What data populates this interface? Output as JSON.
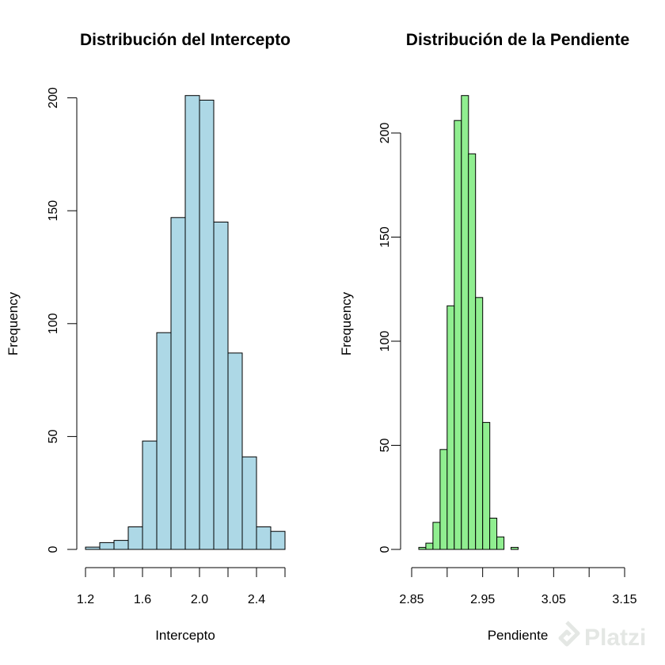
{
  "chart_data": [
    {
      "type": "histogram",
      "title": "Distribución del Intercepto",
      "xlabel": "Intercepto",
      "ylabel": "Frequency",
      "bin_start": 1.2,
      "bin_width": 0.1,
      "counts": [
        1,
        3,
        4,
        10,
        48,
        96,
        147,
        201,
        199,
        145,
        87,
        41,
        10,
        8
      ],
      "xlim": [
        1.2,
        2.6
      ],
      "ylim": [
        0,
        200
      ],
      "x_ticks": [
        1.2,
        1.6,
        2.0,
        2.4
      ],
      "x_tick_labels": [
        "1.2",
        "1.6",
        "2.0",
        "2.4"
      ],
      "x_minor_ticks": [
        1.4,
        1.8,
        2.2,
        2.6
      ],
      "y_ticks": [
        0,
        50,
        100,
        150,
        200
      ],
      "y_tick_labels": [
        "0",
        "50",
        "100",
        "150",
        "200"
      ],
      "color": "#add8e6"
    },
    {
      "type": "histogram",
      "title": "Distribución de la Pendiente",
      "xlabel": "Pendiente",
      "ylabel": "Frequency",
      "bin_start": 2.86,
      "bin_width": 0.01,
      "counts": [
        1,
        3,
        13,
        48,
        117,
        206,
        218,
        190,
        121,
        61,
        15,
        6,
        0,
        1
      ],
      "xlim": [
        2.85,
        3.15
      ],
      "ylim": [
        0,
        200
      ],
      "x_ticks": [
        2.85,
        2.95,
        3.05,
        3.15
      ],
      "x_tick_labels": [
        "2.85",
        "2.95",
        "3.05",
        "3.15"
      ],
      "x_minor_ticks": [
        2.9,
        3.0,
        3.1
      ],
      "y_ticks": [
        0,
        50,
        100,
        150,
        200
      ],
      "y_tick_labels": [
        "0",
        "50",
        "100",
        "150",
        "200"
      ],
      "color": "#90ee90"
    }
  ],
  "watermark": {
    "text": "Platzi",
    "icon": "platzi-logo-icon"
  }
}
